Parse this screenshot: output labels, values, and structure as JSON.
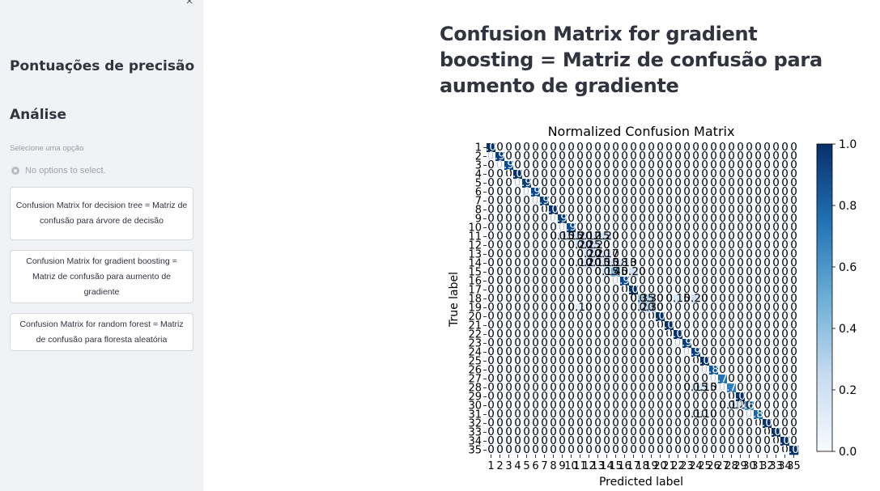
{
  "sidebar": {
    "close_symbol": "×",
    "heading_scores": "Pontuações de precisão",
    "heading_analysis": "Análise",
    "select_label": "Selecione uma opção",
    "no_options": "No options to select.",
    "buttons": [
      {
        "label": "Confusion Matrix for decision tree = Matriz de confusão para árvore de decisão"
      },
      {
        "label": "Confusion Matrix for gradient boosting = Matriz de confusão para aumento de gradiente"
      },
      {
        "label": "Confusion Matrix for random forest = Matriz de confusão para floresta aleatória"
      }
    ]
  },
  "main": {
    "title": "Confusion Matrix for gradient boosting = Matriz de confusão para aumento de gradiente"
  },
  "chart_data": {
    "type": "heatmap",
    "title": "Normalized Confusion Matrix",
    "xlabel": "Predicted label",
    "ylabel": "True label",
    "labels": [
      "1",
      "2",
      "3",
      "4",
      "5",
      "6",
      "7",
      "8",
      "9",
      "10",
      "11",
      "12",
      "13",
      "14",
      "15",
      "16",
      "17",
      "18",
      "19",
      "20",
      "21",
      "22",
      "23",
      "24",
      "25",
      "26",
      "27",
      "28",
      "29",
      "30",
      "31",
      "32",
      "33",
      "34",
      "35"
    ],
    "colorbar_ticks": [
      "0.0",
      "0.2",
      "0.4",
      "0.6",
      "0.8",
      "1.0"
    ],
    "colorbar_range": [
      0,
      1
    ],
    "colormap": "Blues",
    "diagonal": [
      1.0,
      0.95,
      0.9,
      1.0,
      0.95,
      0.9,
      0.95,
      1.0,
      0.95,
      0.9,
      0.2,
      0.25,
      0.2,
      0.15,
      0.45,
      0.9,
      1.0,
      0.35,
      0.3,
      1.0,
      1.0,
      1.0,
      0.95,
      0.95,
      1.0,
      0.85,
      0.75,
      0.7,
      1.0,
      0.6,
      0.8,
      1.0,
      1.0,
      1.0,
      1.0
    ],
    "off_diagonal": [
      {
        "row": 11,
        "col": 9,
        "v": 0.15
      },
      {
        "row": 11,
        "col": 10,
        "v": 0.15
      },
      {
        "row": 11,
        "col": 12,
        "v": 0.12
      },
      {
        "row": 11,
        "col": 13,
        "v": 0.15
      },
      {
        "row": 11,
        "col": 14,
        "v": 0.2
      },
      {
        "row": 12,
        "col": 11,
        "v": 0.2
      },
      {
        "row": 12,
        "col": 13,
        "v": 0.2
      },
      {
        "row": 13,
        "col": 12,
        "v": 0.2
      },
      {
        "row": 13,
        "col": 14,
        "v": 0.17
      },
      {
        "row": 14,
        "col": 11,
        "v": 0.1
      },
      {
        "row": 14,
        "col": 12,
        "v": 0.2
      },
      {
        "row": 14,
        "col": 13,
        "v": 0.15
      },
      {
        "row": 14,
        "col": 15,
        "v": 0.18
      },
      {
        "row": 14,
        "col": 16,
        "v": 0.13
      },
      {
        "row": 15,
        "col": 14,
        "v": 0.15
      },
      {
        "row": 15,
        "col": 17,
        "v": 0.2
      },
      {
        "row": 18,
        "col": 19,
        "v": 0.3
      },
      {
        "row": 18,
        "col": 22,
        "v": 0.15
      },
      {
        "row": 18,
        "col": 24,
        "v": 0.2
      },
      {
        "row": 19,
        "col": 18,
        "v": 0.2
      },
      {
        "row": 19,
        "col": 11,
        "v": 0.1
      },
      {
        "row": 28,
        "col": 24,
        "v": 0.15
      },
      {
        "row": 28,
        "col": 25,
        "v": 0.15
      },
      {
        "row": 30,
        "col": 29,
        "v": 0.2
      },
      {
        "row": 30,
        "col": 28,
        "v": 0.1
      },
      {
        "row": 31,
        "col": 24,
        "v": 0.1
      },
      {
        "row": 31,
        "col": 25,
        "v": 0.1
      }
    ]
  }
}
